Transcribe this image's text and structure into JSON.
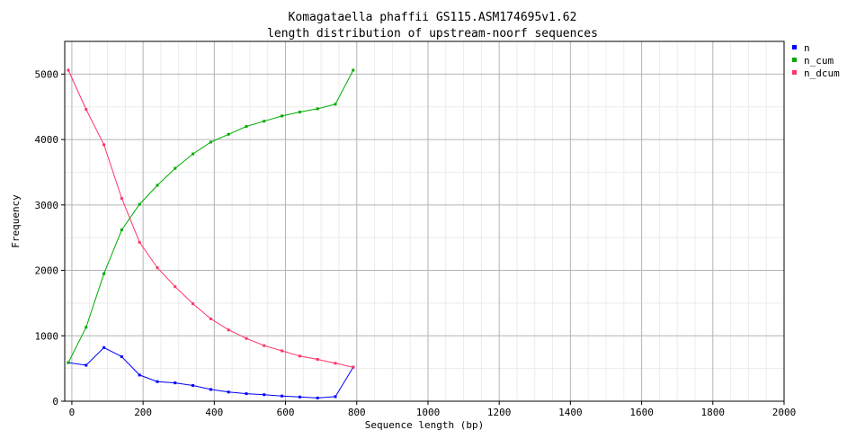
{
  "chart_data": {
    "type": "line",
    "title": "Komagataella phaffii GS115.ASM174695v1.62",
    "subtitle": "length distribution of upstream-noorf sequences",
    "xlabel": "Sequence length (bp)",
    "ylabel": "Frequency",
    "xlim": [
      -20,
      2000
    ],
    "ylim": [
      0,
      5500
    ],
    "xticks": [
      "0",
      "200",
      "400",
      "600",
      "800",
      "1000",
      "1200",
      "1400",
      "1600",
      "1800",
      "2000"
    ],
    "yticks": [
      "0",
      "1000",
      "2000",
      "3000",
      "4000",
      "5000"
    ],
    "grid": true,
    "legend_position": "top-right",
    "x": [
      -10,
      40,
      90,
      140,
      190,
      240,
      290,
      340,
      390,
      440,
      490,
      540,
      590,
      640,
      690,
      740,
      790
    ],
    "series": [
      {
        "name": "n",
        "color": "#0000ff",
        "values": [
          590,
          550,
          820,
          680,
          400,
          300,
          280,
          240,
          180,
          140,
          115,
          100,
          80,
          65,
          50,
          70,
          520
        ]
      },
      {
        "name": "n_cum",
        "color": "#00aa00",
        "values": [
          590,
          1130,
          1950,
          2620,
          3010,
          3300,
          3560,
          3780,
          3960,
          4080,
          4200,
          4280,
          4360,
          4420,
          4470,
          4540,
          5060
        ]
      },
      {
        "name": "n_dcum",
        "color": "#ff3366",
        "values": [
          5060,
          4460,
          3920,
          3100,
          2430,
          2040,
          1750,
          1490,
          1260,
          1090,
          960,
          850,
          770,
          690,
          640,
          580,
          520
        ]
      }
    ]
  }
}
